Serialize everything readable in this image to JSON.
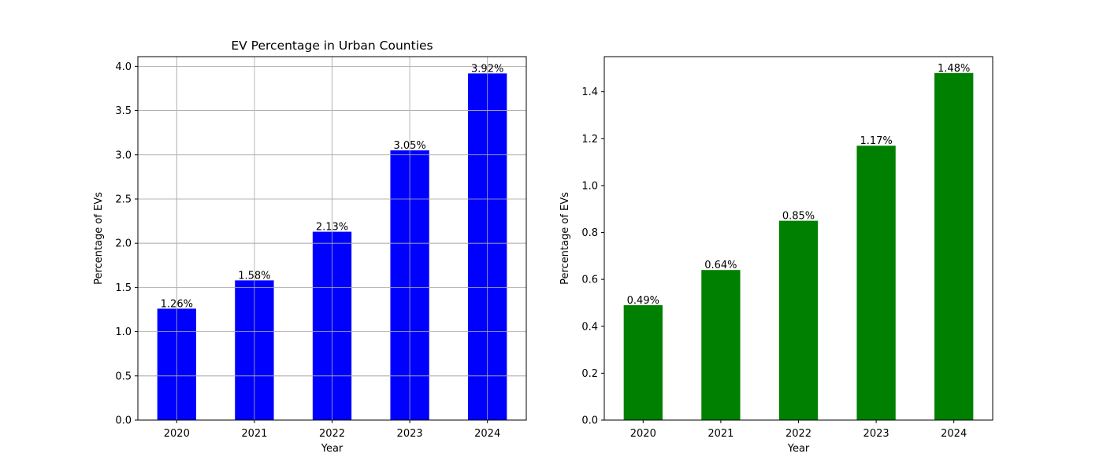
{
  "chart_data": [
    {
      "type": "bar",
      "title": "EV Percentage in Urban Counties",
      "xlabel": "Year",
      "ylabel": "Percentage of EVs",
      "categories": [
        "2020",
        "2021",
        "2022",
        "2023",
        "2024"
      ],
      "values": [
        1.26,
        1.58,
        2.13,
        3.05,
        3.92
      ],
      "data_labels": [
        "1.26%",
        "1.58%",
        "2.13%",
        "3.05%",
        "3.92%"
      ],
      "ylim": [
        0,
        4.11
      ],
      "yticks": [
        0.0,
        0.5,
        1.0,
        1.5,
        2.0,
        2.5,
        3.0,
        3.5,
        4.0
      ],
      "ytick_labels": [
        "0.0",
        "0.5",
        "1.0",
        "1.5",
        "2.0",
        "2.5",
        "3.0",
        "3.5",
        "4.0"
      ],
      "grid": true,
      "color": "#0000ff"
    },
    {
      "type": "bar",
      "title": "",
      "xlabel": "Year",
      "ylabel": "Percentage of EVs",
      "categories": [
        "2020",
        "2021",
        "2022",
        "2023",
        "2024"
      ],
      "values": [
        0.49,
        0.64,
        0.85,
        1.17,
        1.48
      ],
      "data_labels": [
        "0.49%",
        "0.64%",
        "0.85%",
        "1.17%",
        "1.48%"
      ],
      "ylim": [
        0,
        1.5498
      ],
      "yticks": [
        0.0,
        0.2,
        0.4,
        0.6,
        0.8,
        1.0,
        1.2,
        1.4
      ],
      "ytick_labels": [
        "0.0",
        "0.2",
        "0.4",
        "0.6",
        "0.8",
        "1.0",
        "1.2",
        "1.4"
      ],
      "grid": false,
      "color": "#008000"
    }
  ]
}
